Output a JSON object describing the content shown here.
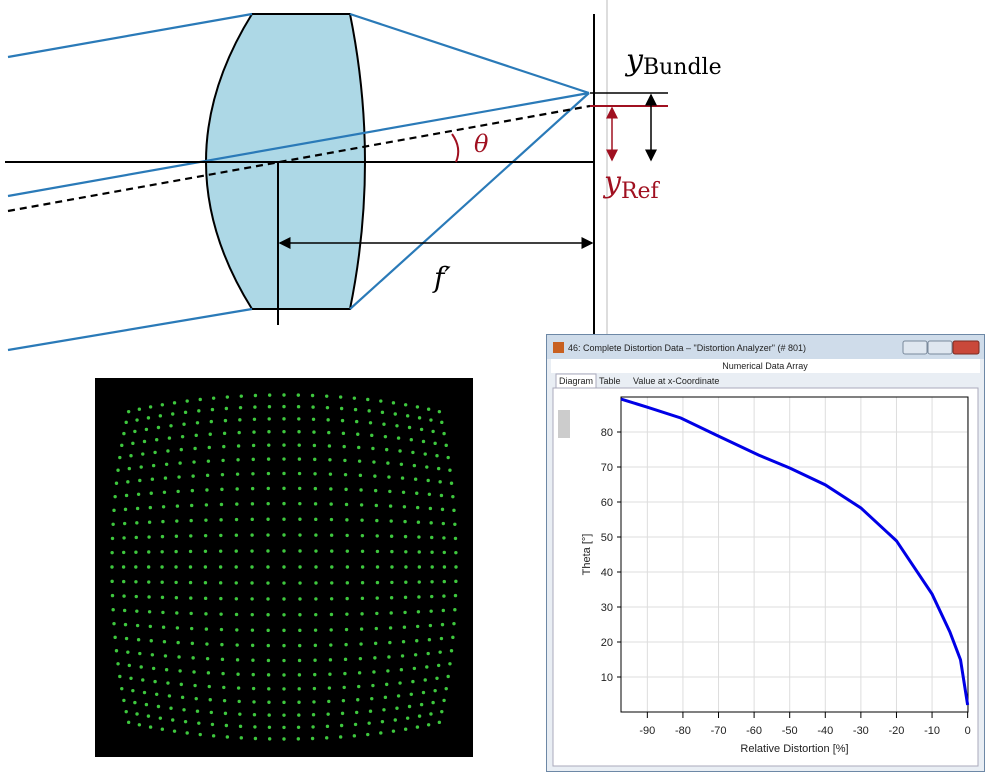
{
  "diagram": {
    "y_bundle": {
      "symbol": "y",
      "subscript": "Bundle"
    },
    "y_ref": {
      "symbol": "y",
      "subscript": "Ref"
    },
    "angle": "θ",
    "focal_length": "f′"
  },
  "window": {
    "title": "46: Complete Distortion Data – \"Distortion Analyzer\" (# 801)",
    "header": "Numerical Data Array",
    "tabs": [
      "Diagram",
      "Table",
      "Value at x-Coordinate"
    ]
  },
  "chart_data": {
    "type": "line",
    "x_label": "Relative Distortion [%]",
    "y_label": "Theta [°]",
    "x": [
      -97.4,
      -90,
      -80.6,
      -70.6,
      -58.7,
      -50,
      -40,
      -30,
      -20,
      -10,
      -5,
      -2,
      0
    ],
    "series": [
      {
        "name": "Theta",
        "color": "#0000e6",
        "values": [
          89.4,
          87.1,
          84,
          79.1,
          73.4,
          69.7,
          64.9,
          58.3,
          48.9,
          33.7,
          22.9,
          14.9,
          2
        ]
      }
    ],
    "xlim": [
      -97.4,
      0.1
    ],
    "ylim": [
      0,
      90
    ],
    "xticks": [
      -90,
      -80,
      -70,
      -60,
      -50,
      -40,
      -30,
      -20,
      -10,
      0
    ],
    "yticks": [
      10,
      20,
      30,
      40,
      50,
      60,
      70,
      80
    ],
    "grid": true
  }
}
